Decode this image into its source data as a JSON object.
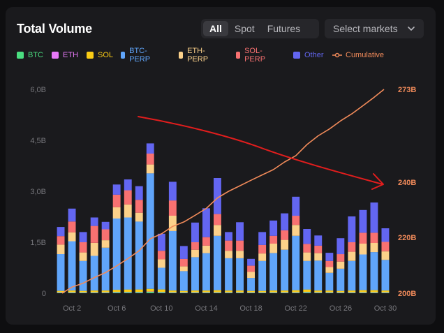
{
  "header": {
    "title": "Total Volume"
  },
  "tabs": [
    {
      "label": "All",
      "active": true
    },
    {
      "label": "Spot",
      "active": false
    },
    {
      "label": "Futures",
      "active": false
    }
  ],
  "market_select": {
    "label": "Select markets"
  },
  "legend": [
    {
      "name": "BTC",
      "color": "#4ade80"
    },
    {
      "name": "ETH",
      "color": "#e879f9"
    },
    {
      "name": "SOL",
      "color": "#facc15"
    },
    {
      "name": "BTC-PERP",
      "color": "#60a5fa"
    },
    {
      "name": "ETH-PERP",
      "color": "#fcd18a"
    },
    {
      "name": "SOL-PERP",
      "color": "#f87171"
    },
    {
      "name": "Other",
      "color": "#6366f1"
    },
    {
      "name": "Cumulative",
      "color": "#f28b5a"
    }
  ],
  "chart_data": {
    "type": "bar",
    "title": "Total Volume",
    "stacked": true,
    "categories": [
      "Oct 1",
      "Oct 2",
      "Oct 3",
      "Oct 4",
      "Oct 5",
      "Oct 6",
      "Oct 7",
      "Oct 8",
      "Oct 9",
      "Oct 10",
      "Oct 11",
      "Oct 12",
      "Oct 13",
      "Oct 14",
      "Oct 15",
      "Oct 16",
      "Oct 17",
      "Oct 18",
      "Oct 19",
      "Oct 20",
      "Oct 21",
      "Oct 22",
      "Oct 23",
      "Oct 24",
      "Oct 25",
      "Oct 26",
      "Oct 27",
      "Oct 28",
      "Oct 29",
      "Oct 30"
    ],
    "x_tick_labels": [
      "Oct 2",
      "Oct 6",
      "Oct 10",
      "Oct 14",
      "Oct 18",
      "Oct 22",
      "Oct 26",
      "Oct 30"
    ],
    "y_left": {
      "ticks": [
        "0",
        "1,5B",
        "3,0B",
        "4,5B",
        "6,0B"
      ],
      "tick_values": [
        0,
        1.5,
        3.0,
        4.5,
        6.0
      ],
      "range": [
        0,
        6.0
      ],
      "unit": "B"
    },
    "y_right": {
      "ticks": [
        "200B",
        "220B",
        "240B",
        "273B"
      ],
      "tick_values": [
        200,
        220,
        240,
        273
      ]
    },
    "series": [
      {
        "name": "BTC",
        "color": "#4ade80",
        "values": [
          0.02,
          0.02,
          0.02,
          0.02,
          0.02,
          0.03,
          0.03,
          0.03,
          0.04,
          0.03,
          0.02,
          0.02,
          0.02,
          0.02,
          0.02,
          0.02,
          0.02,
          0.02,
          0.02,
          0.02,
          0.02,
          0.02,
          0.03,
          0.02,
          0.02,
          0.02,
          0.02,
          0.02,
          0.02,
          0.02
        ]
      },
      {
        "name": "ETH",
        "color": "#e879f9",
        "values": [
          0.01,
          0.01,
          0.01,
          0.01,
          0.01,
          0.01,
          0.01,
          0.01,
          0.01,
          0.01,
          0.01,
          0.01,
          0.01,
          0.01,
          0.01,
          0.01,
          0.01,
          0.01,
          0.01,
          0.01,
          0.01,
          0.01,
          0.01,
          0.01,
          0.01,
          0.01,
          0.01,
          0.01,
          0.01,
          0.01
        ]
      },
      {
        "name": "SOL",
        "color": "#facc15",
        "values": [
          0.04,
          0.05,
          0.04,
          0.05,
          0.05,
          0.06,
          0.07,
          0.07,
          0.08,
          0.07,
          0.05,
          0.04,
          0.05,
          0.05,
          0.06,
          0.05,
          0.05,
          0.04,
          0.04,
          0.05,
          0.05,
          0.06,
          0.07,
          0.05,
          0.05,
          0.04,
          0.05,
          0.06,
          0.06,
          0.05
        ]
      },
      {
        "name": "BTC-PERP",
        "color": "#60a5fa",
        "values": [
          1.08,
          1.45,
          0.88,
          1.02,
          1.26,
          2.1,
          2.12,
          2.0,
          3.4,
          0.64,
          1.75,
          0.58,
          0.98,
          1.1,
          1.6,
          0.95,
          0.95,
          0.38,
          0.88,
          1.1,
          1.2,
          1.6,
          0.84,
          0.88,
          0.52,
          0.65,
          0.87,
          1.05,
          1.12,
          0.9
        ]
      },
      {
        "name": "ETH-PERP",
        "color": "#fcd18a",
        "values": [
          0.28,
          0.26,
          0.25,
          0.38,
          0.22,
          0.33,
          0.38,
          0.26,
          0.26,
          0.25,
          0.45,
          0.14,
          0.22,
          0.22,
          0.32,
          0.22,
          0.22,
          0.18,
          0.22,
          0.28,
          0.29,
          0.32,
          0.25,
          0.22,
          0.17,
          0.21,
          0.27,
          0.32,
          0.27,
          0.25
        ]
      },
      {
        "name": "SOL-PERP",
        "color": "#f87171",
        "values": [
          0.25,
          0.32,
          0.3,
          0.5,
          0.32,
          0.37,
          0.42,
          0.38,
          0.32,
          0.25,
          0.45,
          0.22,
          0.22,
          0.25,
          0.32,
          0.3,
          0.3,
          0.18,
          0.25,
          0.23,
          0.28,
          0.27,
          0.25,
          0.22,
          0.18,
          0.22,
          0.28,
          0.32,
          0.3,
          0.28
        ]
      },
      {
        "name": "Other",
        "color": "#6366f1",
        "values": [
          0.27,
          0.38,
          0.3,
          0.25,
          0.22,
          0.3,
          0.32,
          0.4,
          0.3,
          0.5,
          0.55,
          0.38,
          0.58,
          0.85,
          1.06,
          0.25,
          0.54,
          0.2,
          0.38,
          0.45,
          0.5,
          0.56,
          0.44,
          0.3,
          0.24,
          0.47,
          0.76,
          0.67,
          0.89,
          0.4
        ]
      }
    ],
    "cumulative": {
      "name": "Cumulative",
      "color": "#f28b5a",
      "axis": "right",
      "range": [
        200,
        273
      ],
      "values": [
        200.0,
        202.2,
        203.6,
        205.6,
        207.4,
        209.8,
        212.4,
        215.2,
        219.5,
        221.3,
        224.0,
        225.6,
        228.0,
        230.5,
        234.3,
        236.7,
        238.7,
        240.7,
        242.6,
        244.5,
        247.2,
        249.4,
        253.4,
        256.5,
        258.9,
        261.8,
        264.3,
        267.2,
        270.2,
        273.0
      ]
    },
    "annotation": {
      "type": "arrow",
      "color": "#e11d1d",
      "description": "hand-drawn downward trend arrow"
    }
  }
}
